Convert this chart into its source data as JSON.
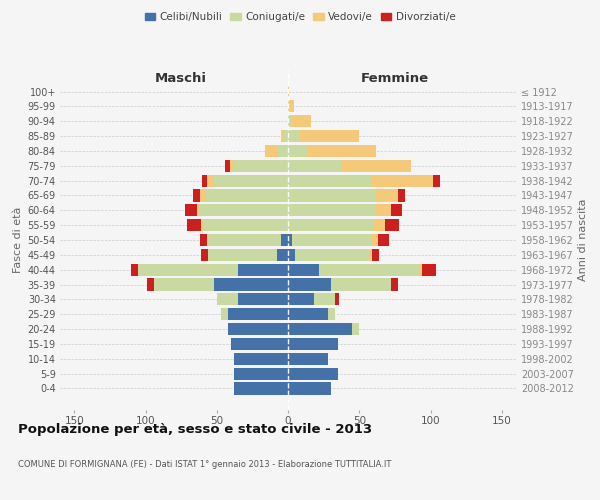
{
  "age_groups": [
    "100+",
    "95-99",
    "90-94",
    "85-89",
    "80-84",
    "75-79",
    "70-74",
    "65-69",
    "60-64",
    "55-59",
    "50-54",
    "45-49",
    "40-44",
    "35-39",
    "30-34",
    "25-29",
    "20-24",
    "15-19",
    "10-14",
    "5-9",
    "0-4"
  ],
  "birth_years": [
    "≤ 1912",
    "1913-1917",
    "1918-1922",
    "1923-1927",
    "1928-1932",
    "1933-1937",
    "1938-1942",
    "1943-1947",
    "1948-1952",
    "1953-1957",
    "1958-1962",
    "1963-1967",
    "1968-1972",
    "1973-1977",
    "1978-1982",
    "1983-1987",
    "1988-1992",
    "1993-1997",
    "1998-2002",
    "2003-2007",
    "2008-2012"
  ],
  "males": {
    "celibi": [
      0,
      0,
      0,
      0,
      0,
      0,
      0,
      0,
      0,
      0,
      5,
      8,
      35,
      52,
      35,
      42,
      42,
      40,
      38,
      38,
      38
    ],
    "coniugati": [
      0,
      0,
      0,
      3,
      8,
      38,
      52,
      58,
      62,
      60,
      52,
      48,
      70,
      42,
      15,
      5,
      0,
      0,
      0,
      0,
      0
    ],
    "vedovi": [
      0,
      0,
      0,
      2,
      8,
      3,
      5,
      4,
      2,
      1,
      0,
      0,
      0,
      0,
      0,
      0,
      0,
      0,
      0,
      0,
      0
    ],
    "divorziati": [
      0,
      0,
      0,
      0,
      0,
      3,
      3,
      5,
      8,
      10,
      5,
      5,
      5,
      5,
      0,
      0,
      0,
      0,
      0,
      0,
      0
    ]
  },
  "females": {
    "nubili": [
      0,
      0,
      0,
      0,
      0,
      0,
      0,
      0,
      0,
      0,
      3,
      5,
      22,
      30,
      18,
      28,
      45,
      35,
      28,
      35,
      30
    ],
    "coniugate": [
      0,
      0,
      2,
      8,
      14,
      38,
      58,
      62,
      62,
      60,
      55,
      52,
      70,
      42,
      15,
      5,
      5,
      0,
      0,
      0,
      0
    ],
    "vedove": [
      1,
      4,
      14,
      42,
      48,
      48,
      44,
      15,
      10,
      8,
      5,
      2,
      2,
      0,
      0,
      0,
      0,
      0,
      0,
      0,
      0
    ],
    "divorziate": [
      0,
      0,
      0,
      0,
      0,
      0,
      5,
      5,
      8,
      10,
      8,
      5,
      10,
      5,
      3,
      0,
      0,
      0,
      0,
      0,
      0
    ]
  },
  "colors": {
    "celibi": "#4472a8",
    "coniugati": "#c8d9a2",
    "vedovi": "#f5c97a",
    "divorziati": "#cc2020"
  },
  "legend_labels": [
    "Celibi/Nubili",
    "Coniugati/e",
    "Vedovi/e",
    "Divorziati/e"
  ],
  "title": "Popolazione per età, sesso e stato civile - 2013",
  "subtitle": "COMUNE DI FORMIGNANA (FE) - Dati ISTAT 1° gennaio 2013 - Elaborazione TUTTITALIA.IT",
  "xlabel_left": "Maschi",
  "xlabel_right": "Femmine",
  "ylabel_left": "Fasce di età",
  "ylabel_right": "Anni di nascita",
  "xlim": 160,
  "background_color": "#f5f5f5"
}
